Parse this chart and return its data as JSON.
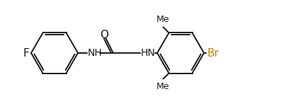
{
  "bg_color": "#ffffff",
  "line_color": "#1a1a1a",
  "br_color": "#b8860b",
  "label_F": "F",
  "label_O": "O",
  "label_NH1": "NH",
  "label_NH2": "HN",
  "label_Br": "Br",
  "figsize": [
    4.18,
    1.5
  ],
  "dpi": 100
}
